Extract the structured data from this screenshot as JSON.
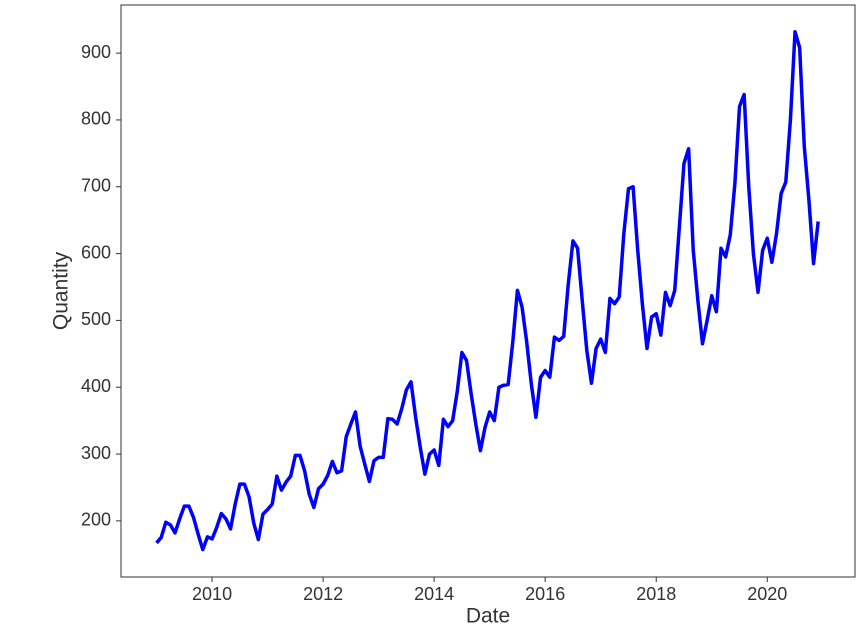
{
  "chart_data": {
    "type": "line",
    "xlabel": "Date",
    "ylabel": "Quantity",
    "x": [
      "2009-01",
      "2009-02",
      "2009-03",
      "2009-04",
      "2009-05",
      "2009-06",
      "2009-07",
      "2009-08",
      "2009-09",
      "2009-10",
      "2009-11",
      "2009-12",
      "2010-01",
      "2010-02",
      "2010-03",
      "2010-04",
      "2010-05",
      "2010-06",
      "2010-07",
      "2010-08",
      "2010-09",
      "2010-10",
      "2010-11",
      "2010-12",
      "2011-01",
      "2011-02",
      "2011-03",
      "2011-04",
      "2011-05",
      "2011-06",
      "2011-07",
      "2011-08",
      "2011-09",
      "2011-10",
      "2011-11",
      "2011-12",
      "2012-01",
      "2012-02",
      "2012-03",
      "2012-04",
      "2012-05",
      "2012-06",
      "2012-07",
      "2012-08",
      "2012-09",
      "2012-10",
      "2012-11",
      "2012-12",
      "2013-01",
      "2013-02",
      "2013-03",
      "2013-04",
      "2013-05",
      "2013-06",
      "2013-07",
      "2013-08",
      "2013-09",
      "2013-10",
      "2013-11",
      "2013-12",
      "2014-01",
      "2014-02",
      "2014-03",
      "2014-04",
      "2014-05",
      "2014-06",
      "2014-07",
      "2014-08",
      "2014-09",
      "2014-10",
      "2014-11",
      "2014-12",
      "2015-01",
      "2015-02",
      "2015-03",
      "2015-04",
      "2015-05",
      "2015-06",
      "2015-07",
      "2015-08",
      "2015-09",
      "2015-10",
      "2015-11",
      "2015-12",
      "2016-01",
      "2016-02",
      "2016-03",
      "2016-04",
      "2016-05",
      "2016-06",
      "2016-07",
      "2016-08",
      "2016-09",
      "2016-10",
      "2016-11",
      "2016-12",
      "2017-01",
      "2017-02",
      "2017-03",
      "2017-04",
      "2017-05",
      "2017-06",
      "2017-07",
      "2017-08",
      "2017-09",
      "2017-10",
      "2017-11",
      "2017-12",
      "2018-01",
      "2018-02",
      "2018-03",
      "2018-04",
      "2018-05",
      "2018-06",
      "2018-07",
      "2018-08",
      "2018-09",
      "2018-10",
      "2018-11",
      "2018-12",
      "2019-01",
      "2019-02",
      "2019-03",
      "2019-04",
      "2019-05",
      "2019-06",
      "2019-07",
      "2019-08",
      "2019-09",
      "2019-10",
      "2019-11",
      "2019-12",
      "2020-01",
      "2020-02",
      "2020-03",
      "2020-04",
      "2020-05",
      "2020-06",
      "2020-07",
      "2020-08",
      "2020-09",
      "2020-10",
      "2020-11",
      "2020-12"
    ],
    "series": [
      {
        "name": "Quantity",
        "color": "#0000ff",
        "values": [
          167,
          175,
          198,
          194,
          182,
          203,
          222,
          222,
          205,
          180,
          157,
          176,
          173,
          190,
          211,
          203,
          188,
          225,
          255,
          255,
          236,
          197,
          172,
          210,
          217,
          225,
          267,
          246,
          258,
          267,
          298,
          298,
          275,
          240,
          220,
          248,
          255,
          268,
          289,
          272,
          275,
          326,
          345,
          363,
          312,
          285,
          259,
          290,
          295,
          295,
          353,
          352,
          345,
          368,
          396,
          408,
          355,
          310,
          270,
          300,
          306,
          283,
          352,
          341,
          350,
          394,
          452,
          440,
          390,
          345,
          305,
          340,
          363,
          350,
          400,
          403,
          404,
          468,
          545,
          520,
          468,
          405,
          355,
          415,
          425,
          415,
          475,
          470,
          476,
          555,
          619,
          608,
          530,
          455,
          406,
          458,
          472,
          452,
          533,
          525,
          535,
          630,
          697,
          700,
          605,
          525,
          458,
          505,
          510,
          478,
          542,
          522,
          545,
          640,
          735,
          757,
          605,
          530,
          465,
          500,
          537,
          513,
          608,
          595,
          628,
          705,
          820,
          838,
          700,
          600,
          542,
          605,
          623,
          587,
          630,
          690,
          707,
          800,
          932,
          908,
          760,
          680,
          585,
          648
        ]
      }
    ],
    "xlim": [
      2008.36,
      2021.58
    ],
    "xticks": [
      2010,
      2012,
      2014,
      2016,
      2018,
      2020
    ],
    "ylim": [
      116,
      972
    ],
    "yticks": [
      200,
      300,
      400,
      500,
      600,
      700,
      800,
      900
    ],
    "grid": false
  }
}
